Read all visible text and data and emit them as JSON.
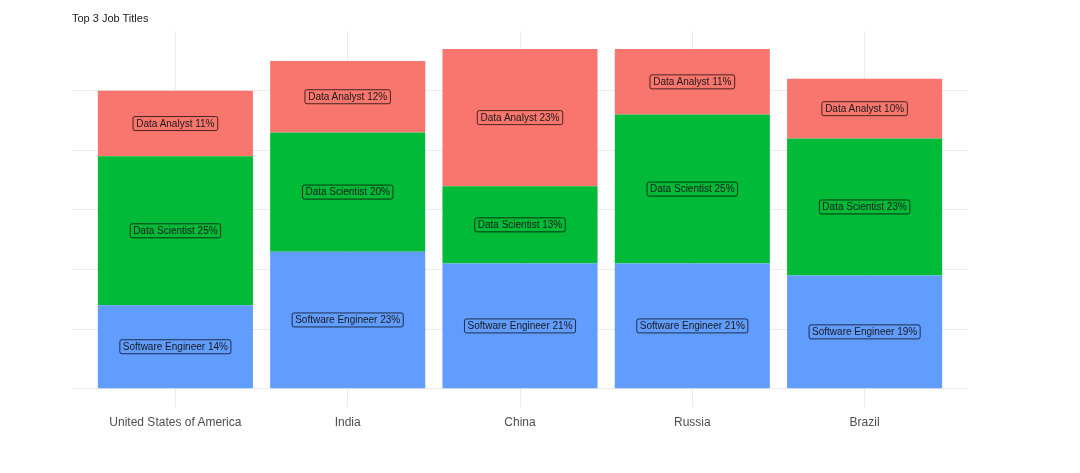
{
  "chart_data": {
    "type": "bar",
    "title": "Top 3 Job Titles",
    "categories": [
      "United States of America",
      "India",
      "China",
      "Russia",
      "Brazil"
    ],
    "series": [
      {
        "color": "#619cff",
        "values": [
          14,
          23,
          21,
          21,
          19
        ],
        "value_labels": [
          "Software Engineer 14%",
          "Software Engineer 23%",
          "Software Engineer 21%",
          "Software Engineer 21%",
          "Software Engineer 19%"
        ]
      },
      {
        "color": "#00ba38",
        "values": [
          25,
          20,
          13,
          25,
          23
        ],
        "value_labels": [
          "Data Scientist 25%",
          "Data Scientist 20%",
          "Data Scientist 13%",
          "Data Scientist 25%",
          "Data Scientist 23%"
        ]
      },
      {
        "color": "#f8766d",
        "values": [
          11,
          12,
          23,
          11,
          10
        ],
        "value_labels": [
          "Data Analyst 11%",
          "Data Analyst 12%",
          "Data Analyst 23%",
          "Data Analyst 11%",
          "Data Analyst 10%"
        ]
      }
    ],
    "stacked": true,
    "ylim": [
      -3,
      60
    ],
    "yticks": [
      {
        "value": 0,
        "label": null
      },
      {
        "value": 10,
        "label": null
      },
      {
        "value": 20,
        "label": null
      },
      {
        "value": 30,
        "label": null
      },
      {
        "value": 40,
        "label": null
      },
      {
        "value": 50,
        "label": null
      }
    ],
    "grid": true,
    "tick_labels": "x"
  }
}
